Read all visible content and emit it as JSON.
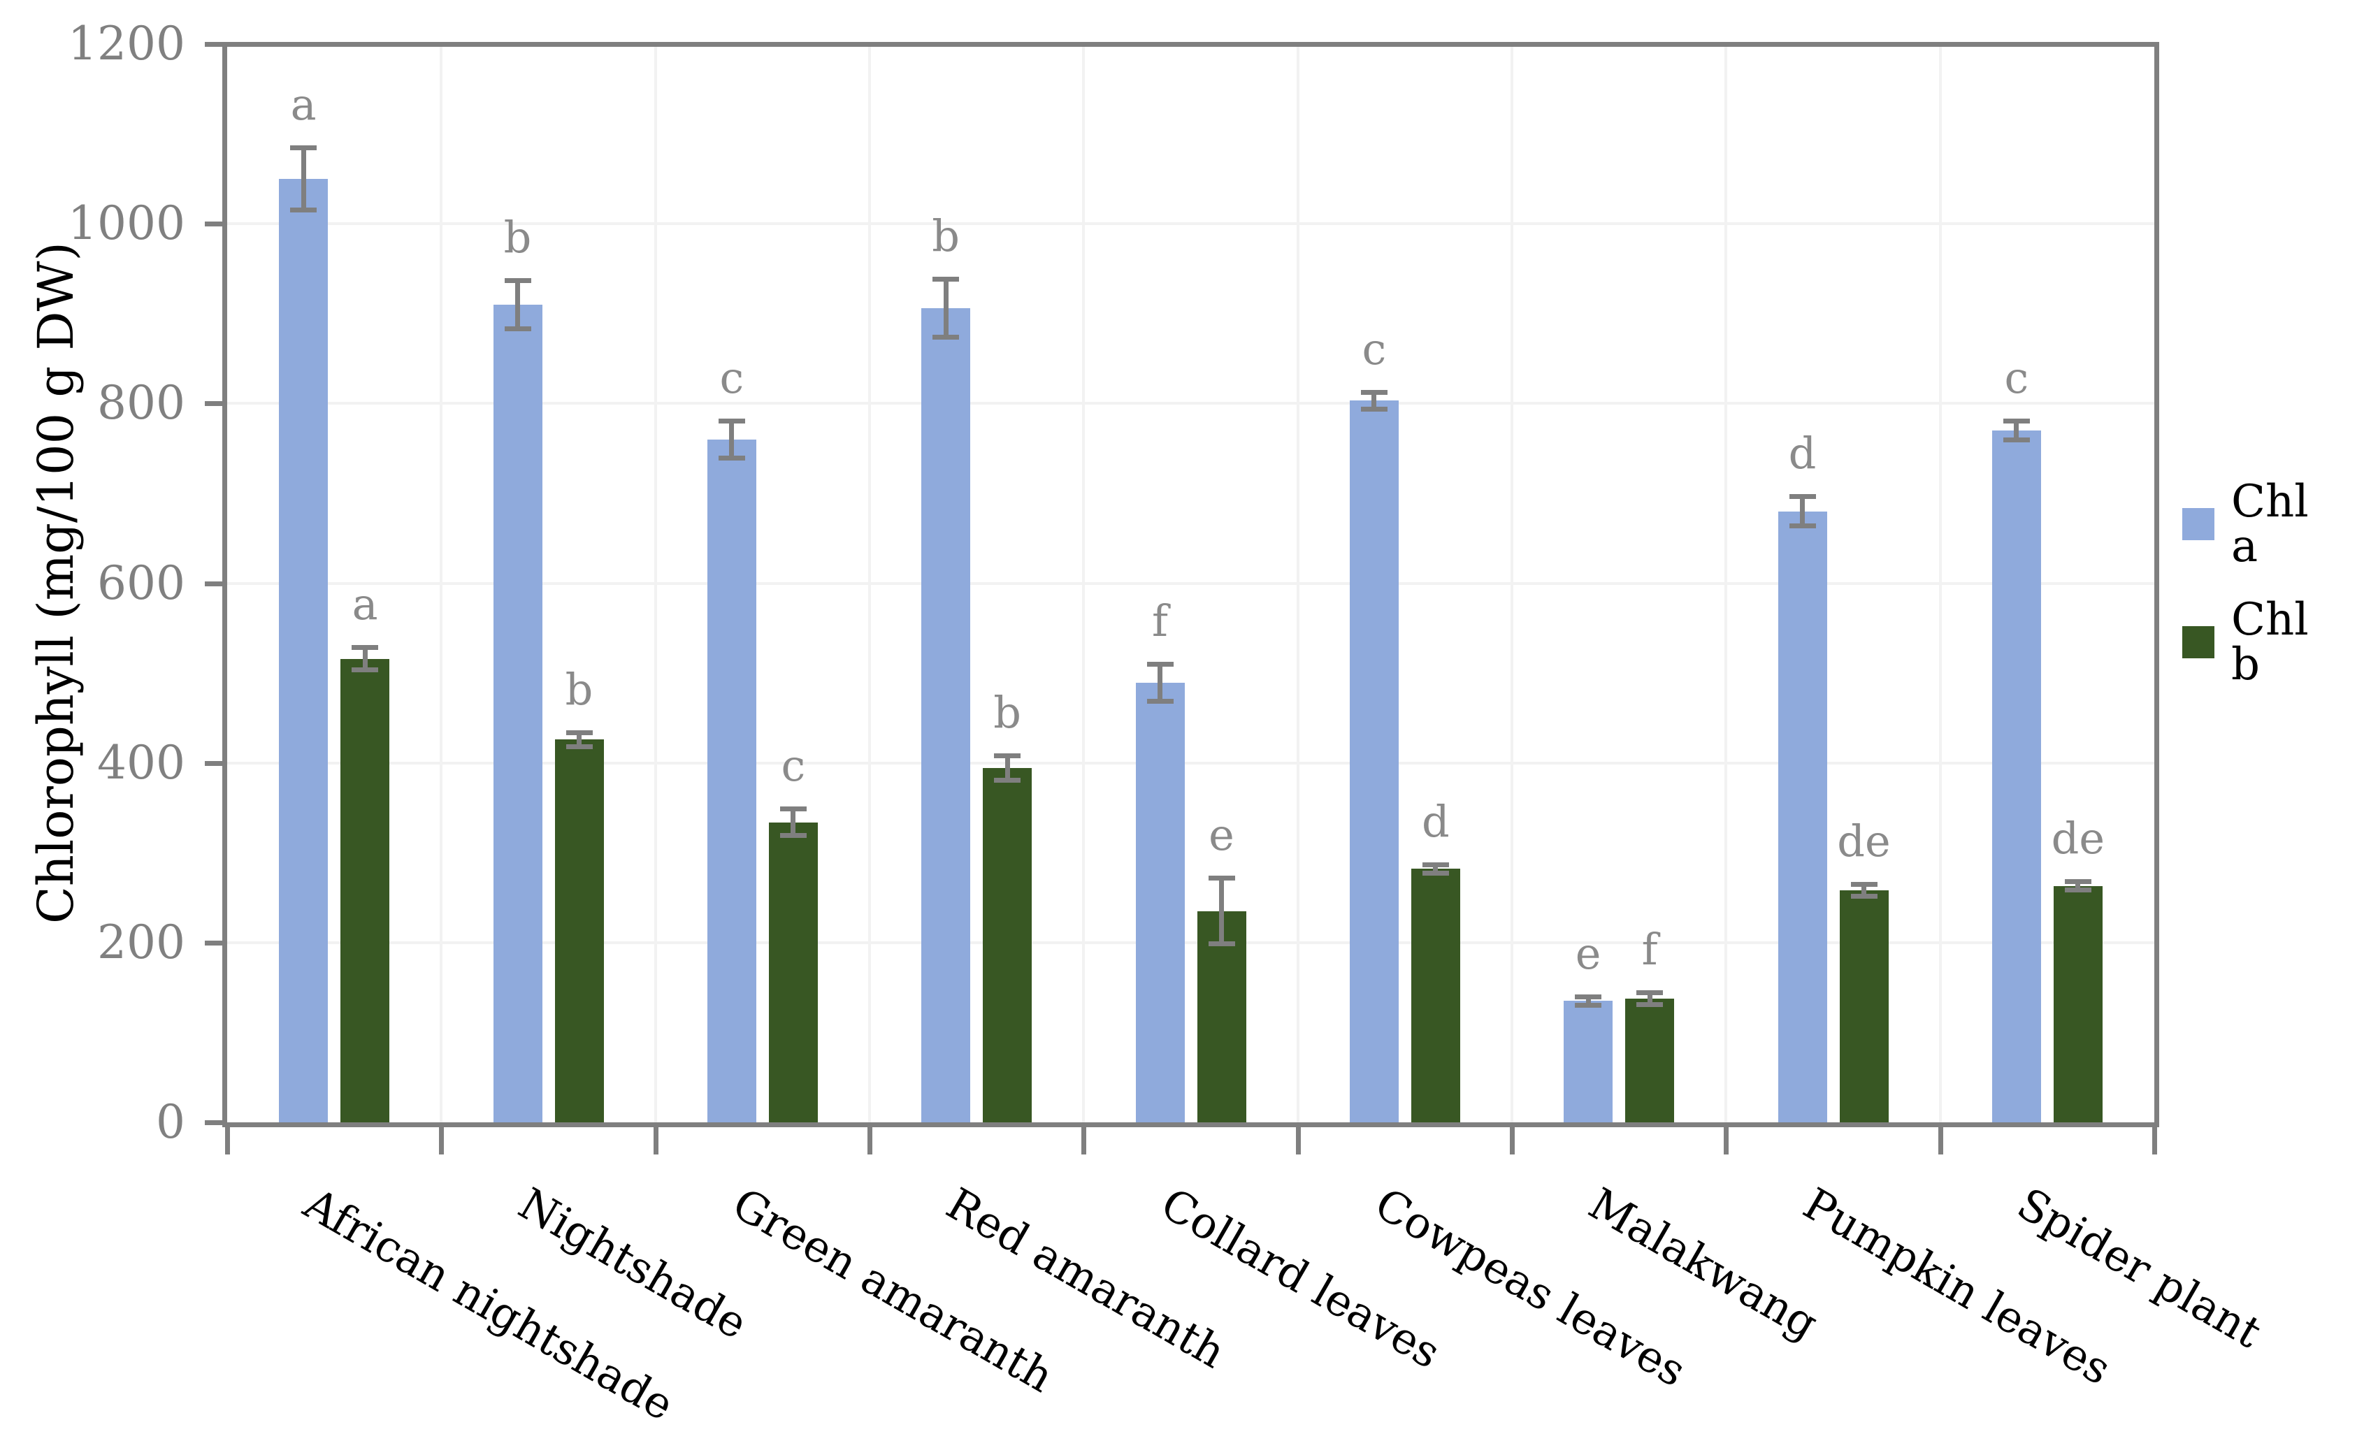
{
  "chart_data": {
    "type": "bar",
    "title": "",
    "xlabel": "",
    "ylabel": "Chlorophyll (mg/100 g DW)",
    "categories": [
      "African nightshade",
      "Nightshade",
      "Green amaranth",
      "Red amaranth",
      "Collard leaves",
      "Cowpeas leaves",
      "Malakwang",
      "Pumpkin leaves",
      "Spider plant"
    ],
    "series": [
      {
        "name": "Chl a",
        "color": "#8FAADC",
        "values": [
          1050,
          910,
          760,
          906,
          489,
          803,
          135,
          680,
          770
        ],
        "errors": [
          35,
          27,
          21,
          33,
          21,
          10,
          5,
          17,
          11
        ],
        "letters": [
          "a",
          "b",
          "c",
          "b",
          "f",
          "c",
          "e",
          "d",
          "c"
        ]
      },
      {
        "name": "Chl b",
        "color": "#385723",
        "values": [
          516,
          426,
          334,
          394,
          235,
          282,
          138,
          258,
          263
        ],
        "errors": [
          13,
          8,
          15,
          14,
          37,
          5,
          7,
          7,
          5
        ],
        "letters": [
          "a",
          "b",
          "c",
          "b",
          "e",
          "d",
          "f",
          "de",
          "de"
        ]
      }
    ],
    "ylim": [
      0,
      1200
    ],
    "ytick_step": 200,
    "ytick_labels": [
      "0",
      "200",
      "400",
      "600",
      "800",
      "1000",
      "1200"
    ],
    "grid": true,
    "legend_position": "right",
    "error_bar_color": "#7F7F7F",
    "letter_color": "#8A8A8A",
    "axis_color": "#7F7F7F",
    "gridline_color": "#F2F2F2",
    "tick_label_color": "#808080",
    "background_color": "#FFFFFF"
  },
  "legend": {
    "chl_a_label": "Chl a",
    "chl_b_label": "Chl b"
  },
  "axis": {
    "y_title": "Chlorophyll (mg/100 g DW)"
  }
}
